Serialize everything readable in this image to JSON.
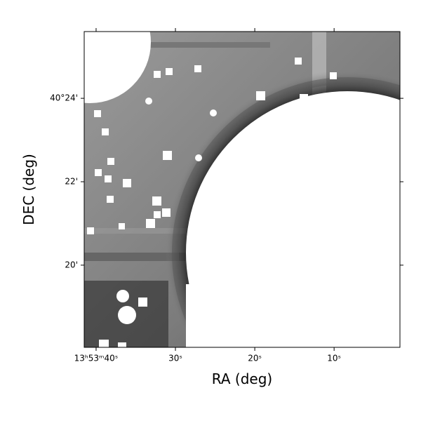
{
  "chart_data": {
    "type": "image",
    "xlabel": "RA (deg)",
    "ylabel": "DEC (deg)",
    "xlim": [
      41.5,
      1.7
    ],
    "ylim": [
      18.03,
      25.6
    ],
    "xticks": [
      {
        "value": 40,
        "label": "13ʰ53ᵐ40ˢ"
      },
      {
        "value": 30,
        "label": "30ˢ"
      },
      {
        "value": 20,
        "label": "20ˢ"
      },
      {
        "value": 10,
        "label": "10ˢ"
      }
    ],
    "yticks": [
      {
        "value": 24,
        "label": "40°24'"
      },
      {
        "value": 22,
        "label": "22'"
      },
      {
        "value": 20,
        "label": "20'"
      }
    ]
  }
}
